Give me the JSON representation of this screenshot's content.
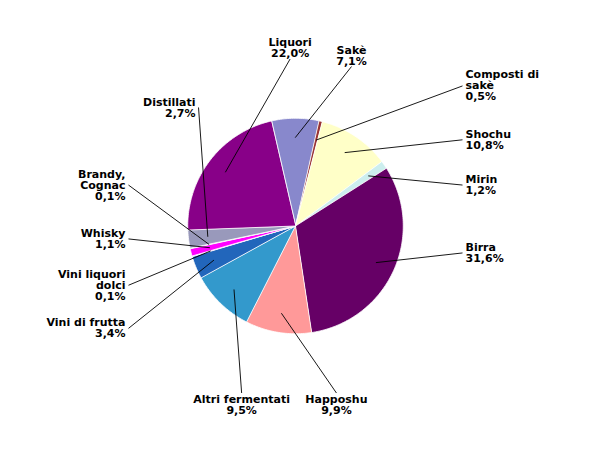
{
  "chart_data": {
    "type": "pie",
    "categories": [
      "Sakè",
      "Composti di\nsakè",
      "Shochu",
      "Mirin",
      "Birra",
      "Happoshu",
      "Altri fermentati",
      "Vini di frutta",
      "Vini liquori\ndolci",
      "Whisky",
      "Brandy,\nCognac",
      "Distillati",
      "Liquori"
    ],
    "values": [
      7.1,
      0.5,
      10.8,
      1.2,
      31.6,
      9.9,
      9.5,
      3.4,
      0.1,
      1.1,
      0.1,
      2.7,
      22.0
    ],
    "value_labels": [
      "7,1%",
      "0,5%",
      "10,8%",
      "1,2%",
      "31,6%",
      "9,9%",
      "9,5%",
      "3,4%",
      "0,1%",
      "1,1%",
      "0,1%",
      "2,7%",
      "22,0%"
    ],
    "colors": [
      "#8888CC",
      "#993333",
      "#FFFFC8",
      "#CCEEEE",
      "#660066",
      "#FF9999",
      "#3399CC",
      "#2266BB",
      "#AAAADD",
      "#FF00FF",
      "#999999",
      "#9999BB",
      "#880088"
    ],
    "data_labels": true
  }
}
